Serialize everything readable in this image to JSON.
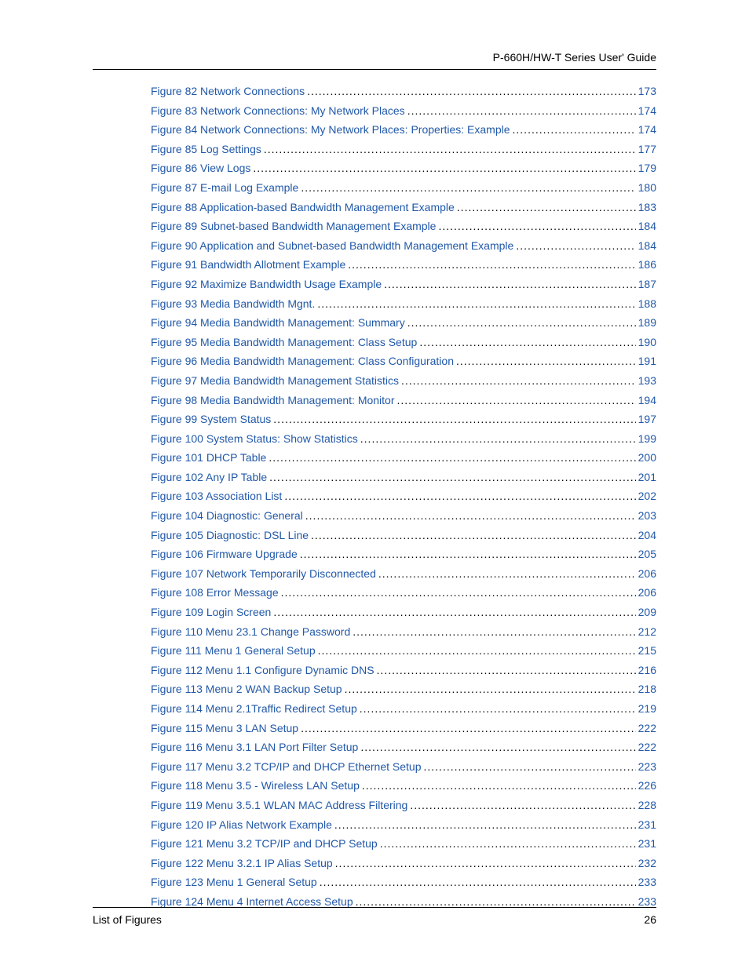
{
  "header": {
    "title": "P-660H/HW-T Series User' Guide"
  },
  "footer": {
    "left": "List of Figures",
    "page_number": "26"
  },
  "style": {
    "link_color": "#2158a8",
    "text_color": "#000000",
    "background_color": "#ffffff",
    "font_size": 14,
    "rule_color": "#000000"
  },
  "toc": {
    "entries": [
      {
        "label": "Figure 82 Network Connections",
        "page": "173"
      },
      {
        "label": "Figure 83 Network Connections: My Network Places",
        "page": "174"
      },
      {
        "label": "Figure 84 Network Connections: My Network Places: Properties: Example",
        "page": "174"
      },
      {
        "label": "Figure 85 Log Settings",
        "page": "177"
      },
      {
        "label": "Figure 86 View Logs",
        "page": "179"
      },
      {
        "label": "Figure 87 E-mail Log Example",
        "page": "180"
      },
      {
        "label": "Figure 88 Application-based Bandwidth Management Example",
        "page": "183"
      },
      {
        "label": "Figure 89 Subnet-based Bandwidth Management Example",
        "page": "184"
      },
      {
        "label": "Figure 90 Application and Subnet-based Bandwidth Management Example",
        "page": "184"
      },
      {
        "label": "Figure 91 Bandwidth Allotment Example",
        "page": "186"
      },
      {
        "label": "Figure 92 Maximize Bandwidth Usage Example",
        "page": "187"
      },
      {
        "label": "Figure 93 Media Bandwidth Mgnt.",
        "page": "188"
      },
      {
        "label": "Figure 94 Media Bandwidth Management: Summary",
        "page": "189"
      },
      {
        "label": "Figure 95 Media Bandwidth Management: Class Setup",
        "page": "190"
      },
      {
        "label": "Figure 96 Media Bandwidth Management: Class Configuration",
        "page": "191"
      },
      {
        "label": "Figure 97 Media Bandwidth Management Statistics",
        "page": "193"
      },
      {
        "label": "Figure 98 Media Bandwidth Management: Monitor",
        "page": "194"
      },
      {
        "label": "Figure 99 System Status",
        "page": "197"
      },
      {
        "label": "Figure 100 System Status: Show Statistics",
        "page": "199"
      },
      {
        "label": "Figure 101 DHCP Table",
        "page": "200"
      },
      {
        "label": "Figure 102 Any IP Table",
        "page": "201"
      },
      {
        "label": "Figure 103 Association List",
        "page": "202"
      },
      {
        "label": "Figure 104 Diagnostic: General",
        "page": "203"
      },
      {
        "label": "Figure 105 Diagnostic: DSL Line",
        "page": "204"
      },
      {
        "label": "Figure 106 Firmware Upgrade",
        "page": "205"
      },
      {
        "label": "Figure 107 Network Temporarily Disconnected",
        "page": "206"
      },
      {
        "label": "Figure 108 Error Message",
        "page": "206"
      },
      {
        "label": "Figure 109 Login Screen",
        "page": "209"
      },
      {
        "label": "Figure 110 Menu 23.1 Change Password",
        "page": "212"
      },
      {
        "label": "Figure 111 Menu 1 General Setup",
        "page": "215"
      },
      {
        "label": "Figure 112 Menu 1.1 Configure Dynamic DNS",
        "page": "216"
      },
      {
        "label": "Figure 113 Menu 2 WAN Backup Setup",
        "page": "218"
      },
      {
        "label": "Figure 114 Menu 2.1Traffic Redirect Setup",
        "page": "219"
      },
      {
        "label": "Figure 115 Menu 3 LAN Setup",
        "page": "222"
      },
      {
        "label": "Figure 116 Menu 3.1 LAN Port Filter Setup",
        "page": "222"
      },
      {
        "label": "Figure 117 Menu 3.2 TCP/IP and DHCP Ethernet Setup",
        "page": "223"
      },
      {
        "label": "Figure 118  Menu 3.5 - Wireless LAN Setup",
        "page": "226"
      },
      {
        "label": "Figure 119 Menu 3.5.1 WLAN MAC Address Filtering",
        "page": "228"
      },
      {
        "label": "Figure 120 IP Alias Network Example",
        "page": "231"
      },
      {
        "label": "Figure 121 Menu 3.2 TCP/IP and DHCP Setup",
        "page": "231"
      },
      {
        "label": "Figure 122 Menu 3.2.1 IP Alias Setup",
        "page": "232"
      },
      {
        "label": "Figure 123 Menu 1 General Setup",
        "page": "233"
      },
      {
        "label": "Figure 124 Menu 4 Internet Access Setup",
        "page": "233"
      }
    ]
  }
}
